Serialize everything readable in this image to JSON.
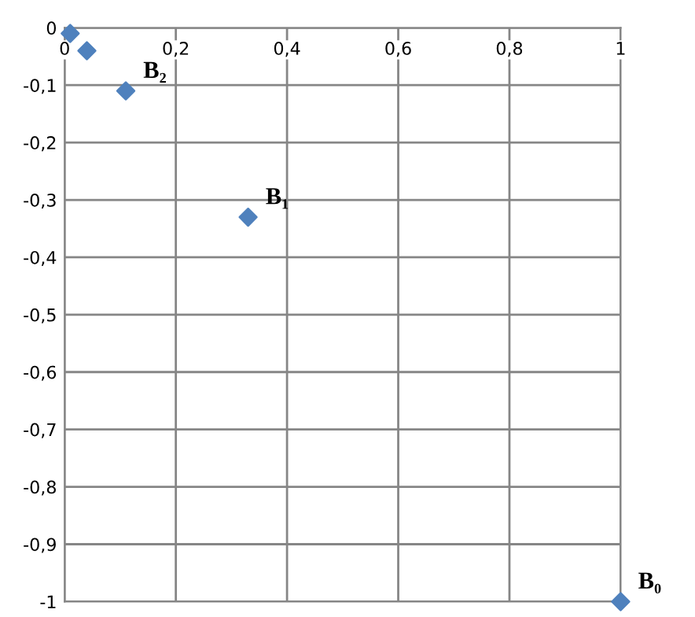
{
  "chart_data": {
    "type": "scatter",
    "x": [
      0.01,
      0.04,
      0.11,
      0.33,
      1
    ],
    "series": [
      {
        "color": "#4f81bd",
        "values": [
          -0.01,
          -0.04,
          -0.11,
          -0.33,
          -1
        ]
      }
    ],
    "marker": "diamond",
    "xlim": [
      0,
      1
    ],
    "ylim": [
      -1,
      0
    ],
    "xticks": [
      0,
      {
        "value": 0.2,
        "label": "0,2"
      },
      {
        "value": 0.4,
        "label": "0,4"
      },
      {
        "value": 0.6,
        "label": "0,6"
      },
      {
        "value": 0.8,
        "label": "0,8"
      },
      1
    ],
    "yticks": [
      -1,
      {
        "value": -0.9,
        "label": "-0,9"
      },
      {
        "value": -0.8,
        "label": "-0,8"
      },
      {
        "value": -0.7,
        "label": "-0,7"
      },
      {
        "value": -0.6,
        "label": "-0,6"
      },
      {
        "value": -0.5,
        "label": "-0,5"
      },
      {
        "value": -0.4,
        "label": "-0,4"
      },
      {
        "value": -0.3,
        "label": "-0,3"
      },
      {
        "value": -0.2,
        "label": "-0,2"
      },
      {
        "value": -0.1,
        "label": "-0,1"
      },
      0
    ],
    "grid": true,
    "annotations": [
      {
        "text": "B₀",
        "x": 1,
        "y": -1
      },
      {
        "text": "B₁",
        "x": 0.33,
        "y": -0.33
      },
      {
        "text": "B₂",
        "x": 0.11,
        "y": -0.11
      }
    ]
  }
}
